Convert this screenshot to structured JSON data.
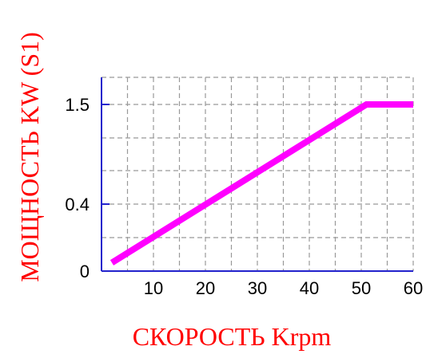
{
  "chart_data": {
    "type": "line",
    "title": "",
    "xlabel": "СКОРОСТЬ Krpm",
    "ylabel": "МОЩНОСТЬ KW (S1)",
    "xlim": [
      0,
      60
    ],
    "x_ticks": [
      10,
      20,
      30,
      40,
      50,
      60
    ],
    "y_ticks": [
      {
        "label": "0",
        "value": 0
      },
      {
        "label": "0.4",
        "value": 0.4
      },
      {
        "label": "1.5",
        "value": 1.5
      }
    ],
    "grid": true,
    "series": [
      {
        "color": "#ff00ff",
        "points": [
          {
            "x": 2,
            "y": 0.05
          },
          {
            "x": 51,
            "y": 1.5
          },
          {
            "x": 60,
            "y": 1.5
          }
        ]
      }
    ],
    "colors": {
      "axis": "#2222cc",
      "grid": "#999999",
      "label": "#ff0000",
      "line": "#ff00ff"
    }
  }
}
